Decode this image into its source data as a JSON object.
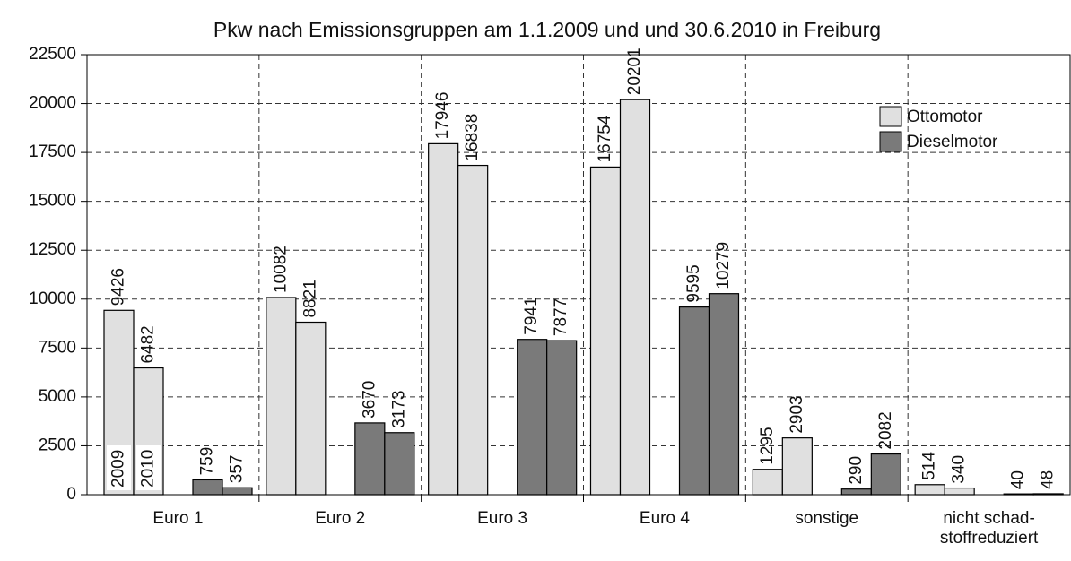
{
  "chart_data": {
    "type": "grouped-bar",
    "title": "Pkw nach Emissionsgruppen am 1.1.2009 und und 30.6.2010 in Freiburg",
    "categories": [
      "Euro 1",
      "Euro 2",
      "Euro 3",
      "Euro 4",
      "sonstige",
      "nicht schad-\nstoffreduziert"
    ],
    "years": [
      "2009",
      "2010"
    ],
    "series": [
      {
        "name": "Ottomotor",
        "color": "#e0e0e0",
        "values": [
          [
            9426,
            6482
          ],
          [
            10082,
            8821
          ],
          [
            17946,
            16838
          ],
          [
            16754,
            20201
          ],
          [
            1295,
            2903
          ],
          [
            514,
            340
          ]
        ]
      },
      {
        "name": "Dieselmotor",
        "color": "#7a7a7a",
        "values": [
          [
            759,
            357
          ],
          [
            3670,
            3173
          ],
          [
            7941,
            7877
          ],
          [
            9595,
            10279
          ],
          [
            290,
            2082
          ],
          [
            40,
            48
          ]
        ]
      }
    ],
    "ylim": [
      0,
      22500
    ],
    "yticks": [
      0,
      2500,
      5000,
      7500,
      10000,
      12500,
      15000,
      17500,
      20000,
      22500
    ],
    "grid": true,
    "legend": "top-right"
  }
}
